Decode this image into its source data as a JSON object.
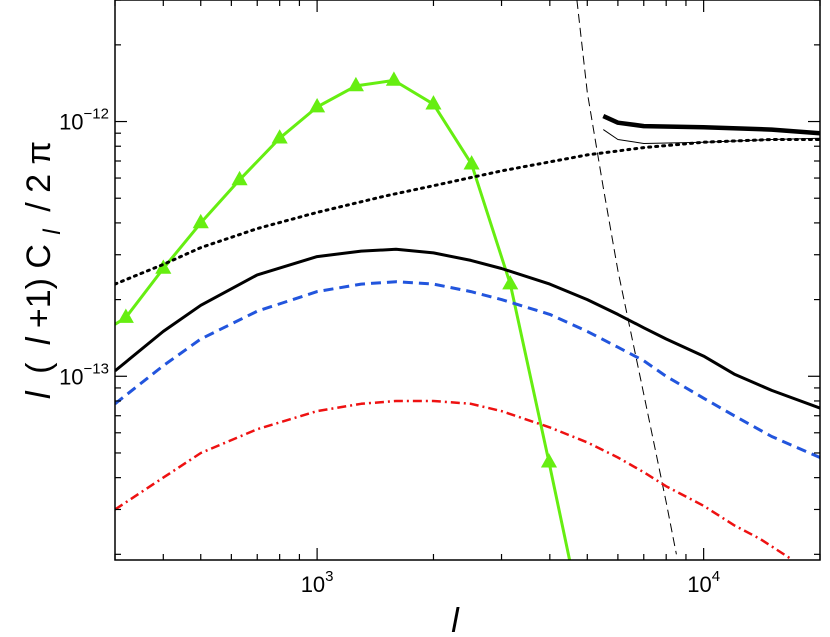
{
  "chart_data": {
    "type": "line",
    "title": "",
    "xlabel": "l",
    "ylabel_parts": [
      "l",
      "(",
      "l",
      "+1) C",
      "l",
      "/ 2 π"
    ],
    "xscale": "log",
    "yscale": "log",
    "xlim": [
      300,
      20000
    ],
    "ylim": [
      1.9e-14,
      3e-12
    ],
    "grid": false,
    "legend": "none",
    "x_ticks": [
      {
        "value": 1000,
        "base": "10",
        "exp": "3"
      },
      {
        "value": 10000,
        "base": "10",
        "exp": "4"
      }
    ],
    "y_ticks": [
      {
        "value": 1e-13,
        "base": "10",
        "exp": "−13"
      },
      {
        "value": 1e-12,
        "base": "10",
        "exp": "−12"
      }
    ],
    "series": [
      {
        "style": "green-triangles",
        "color": "#66ee11",
        "x": [
          300,
          320,
          400,
          500,
          630,
          800,
          1000,
          1260,
          1580,
          2000,
          2510,
          3160,
          3980,
          4500
        ],
        "y": [
          1.6e-13,
          1.7e-13,
          2.65e-13,
          4e-13,
          5.9e-13,
          8.6e-13,
          1.14e-12,
          1.38e-12,
          1.45e-12,
          1.17e-12,
          6.8e-13,
          2.3e-13,
          4.6e-14,
          1.9e-14
        ]
      },
      {
        "style": "thick-solid",
        "color": "#000000",
        "x": [
          5500,
          6000,
          7000,
          10000,
          15000,
          20000
        ],
        "y": [
          1.05e-12,
          9.9e-13,
          9.6e-13,
          9.5e-13,
          9.3e-13,
          9e-13
        ]
      },
      {
        "style": "thin-solid",
        "color": "#000000",
        "x": [
          5500,
          6000,
          7000,
          10000,
          15000,
          20000
        ],
        "y": [
          9.3e-13,
          8.5e-13,
          8.2e-13,
          8.3e-13,
          8.5e-13,
          8.6e-13
        ]
      },
      {
        "style": "dotted",
        "color": "#000000",
        "x": [
          300,
          400,
          500,
          700,
          1000,
          1500,
          2000,
          3000,
          5000,
          7000,
          10000,
          15000,
          20000
        ],
        "y": [
          2.3e-13,
          2.75e-13,
          3.2e-13,
          3.8e-13,
          4.4e-13,
          5.1e-13,
          5.6e-13,
          6.4e-13,
          7.4e-13,
          7.9e-13,
          8.3e-13,
          8.5e-13,
          8.5e-13
        ]
      },
      {
        "style": "thin-dashed",
        "color": "#000000",
        "x": [
          4700,
          5000,
          5500,
          6000,
          7000,
          8000,
          8500
        ],
        "y": [
          3e-12,
          1.3e-12,
          5.5e-13,
          2.6e-13,
          8.5e-14,
          3.2e-14,
          2e-14
        ]
      },
      {
        "style": "solid",
        "color": "#000000",
        "x": [
          300,
          400,
          500,
          700,
          1000,
          1300,
          1600,
          2000,
          2500,
          3000,
          4000,
          5000,
          6000,
          7000,
          8000,
          10000,
          12000,
          15000,
          20000
        ],
        "y": [
          1.05e-13,
          1.5e-13,
          1.9e-13,
          2.5e-13,
          2.95e-13,
          3.1e-13,
          3.15e-13,
          3.05e-13,
          2.85e-13,
          2.65e-13,
          2.3e-13,
          2e-13,
          1.75e-13,
          1.55e-13,
          1.4e-13,
          1.2e-13,
          1.02e-13,
          8.8e-14,
          7.5e-14
        ]
      },
      {
        "style": "dashed",
        "color": "#2255dd",
        "x": [
          300,
          400,
          500,
          700,
          1000,
          1300,
          1600,
          2000,
          2500,
          3000,
          4000,
          5000,
          6000,
          7000,
          8000,
          10000,
          12000,
          15000,
          20000
        ],
        "y": [
          7.8e-14,
          1.1e-13,
          1.4e-13,
          1.8e-13,
          2.15e-13,
          2.3e-13,
          2.35e-13,
          2.3e-13,
          2.15e-13,
          2e-13,
          1.75e-13,
          1.5e-13,
          1.3e-13,
          1.15e-13,
          1e-13,
          8.2e-14,
          7e-14,
          5.8e-14,
          4.8e-14
        ]
      },
      {
        "style": "dash-dot",
        "color": "#ee1111",
        "x": [
          300,
          400,
          500,
          700,
          1000,
          1300,
          1600,
          2000,
          2500,
          3000,
          4000,
          5000,
          6000,
          7000,
          8000,
          10000,
          12000,
          14000,
          17000
        ],
        "y": [
          3e-14,
          4e-14,
          5e-14,
          6.2e-14,
          7.3e-14,
          7.8e-14,
          8e-14,
          8e-14,
          7.8e-14,
          7.3e-14,
          6.3e-14,
          5.5e-14,
          4.8e-14,
          4.2e-14,
          3.7e-14,
          3.1e-14,
          2.6e-14,
          2.3e-14,
          1.9e-14
        ]
      }
    ]
  }
}
